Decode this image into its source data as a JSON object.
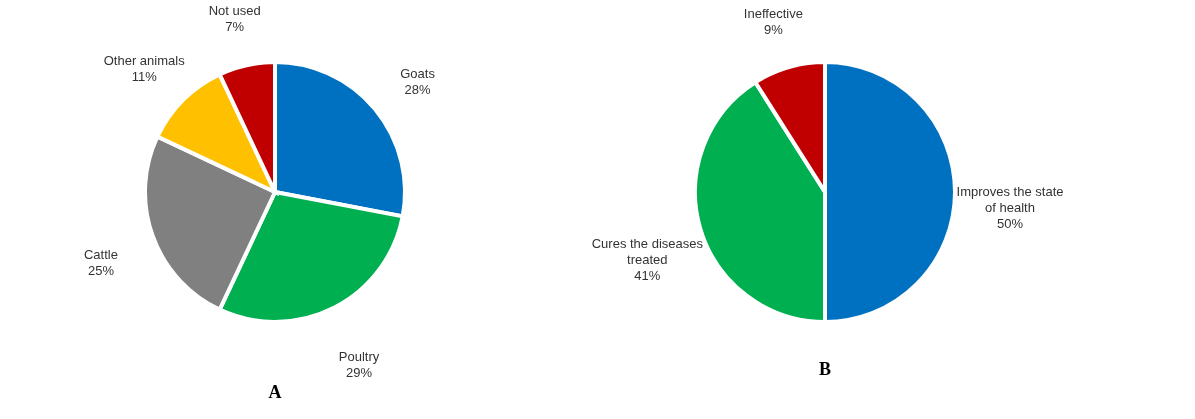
{
  "chart_data": [
    {
      "type": "pie",
      "title": "A",
      "categories": [
        "Goats",
        "Poultry",
        "Cattle",
        "Other animals",
        "Not used"
      ],
      "values": [
        28,
        29,
        25,
        11,
        7
      ],
      "colors": [
        "#0070c0",
        "#00b050",
        "#808080",
        "#ffc000",
        "#c00000"
      ],
      "value_labels": [
        "28%",
        "29%",
        "25%",
        "11%",
        "7%"
      ]
    },
    {
      "type": "pie",
      "title": "B",
      "categories": [
        "Improves the state of health",
        "Cures the diseases treated",
        "Ineffective"
      ],
      "values": [
        50,
        41,
        9
      ],
      "colors": [
        "#0070c0",
        "#00b050",
        "#c00000"
      ],
      "value_labels": [
        "50%",
        "41%",
        "9%"
      ]
    }
  ]
}
